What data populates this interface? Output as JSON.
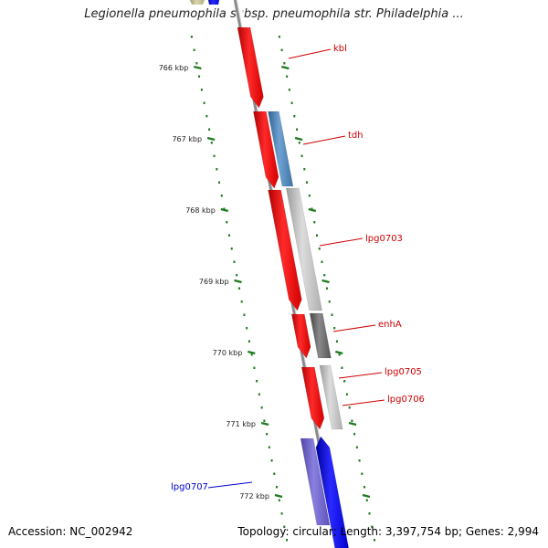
{
  "title": "Legionella pneumophila subsp. pneumophila str. Philadelphia ...",
  "footer": {
    "accession": "Accession: NC_002942",
    "summary": "Topology: circular; Length: 3,397,754 bp; Genes: 2,994"
  },
  "colors": {
    "backbone": "#8a8a8a",
    "tick": "#1e7a1e",
    "gene_red": "#ff0000",
    "gene_blue": "#0000ff",
    "gene_purple": "#7b6fd6",
    "gene_steelblue": "#5a8fc4",
    "gene_gray": "#c4c4c4",
    "gene_darkgray": "#6e6e6e",
    "gene_olive": "#c8c49a",
    "label_red": "#cc0000",
    "label_blue": "#0000cc"
  },
  "ticks": [
    "766 kbp",
    "767 kbp",
    "768 kbp",
    "769 kbp",
    "770 kbp",
    "771 kbp",
    "772 kbp"
  ],
  "genes": [
    {
      "label": "kbl",
      "strand": "forward",
      "color": "gene_red",
      "label_color": "label_red"
    },
    {
      "label": "tdh",
      "strand": "reverse",
      "color": "gene_steelblue",
      "label_color": "label_red"
    },
    {
      "label": "lpg0703",
      "strand": "reverse",
      "color": "gene_gray",
      "label_color": "label_red"
    },
    {
      "label": "enhA",
      "strand": "reverse",
      "color": "gene_darkgray",
      "label_color": "label_red"
    },
    {
      "label": "lpg0705",
      "strand": "reverse",
      "color": "gene_gray",
      "label_color": "label_red"
    },
    {
      "label": "lpg0706",
      "strand": "forward",
      "color": "gene_red",
      "label_color": "label_red"
    },
    {
      "label": "lpg0707",
      "strand": "forward",
      "color": "gene_purple",
      "label_color": "label_blue"
    }
  ]
}
